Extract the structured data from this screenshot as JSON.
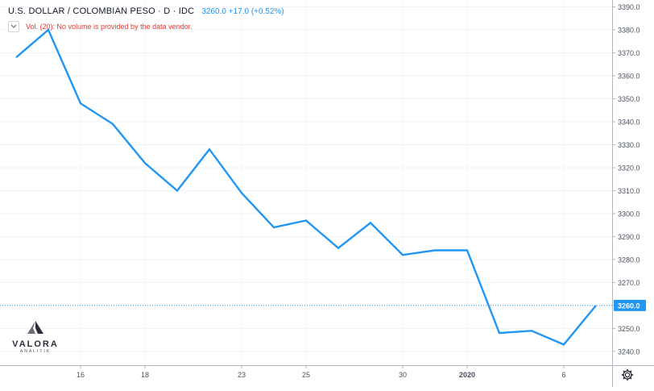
{
  "legend": {
    "title": "U.S. DOLLAR / COLOMBIAN PESO · D · IDC",
    "quote": "3260.0 +17.0 (+0.52%)"
  },
  "volume_note": "Vol. (20): No volume is provided by the data vendor.",
  "logo": {
    "name": "VALORA",
    "sub": "ANALITIK"
  },
  "colors": {
    "line": "#2196f3",
    "grid": "#f0f3fa",
    "axis_text": "#4c525e",
    "price_label_bg": "#2196f3",
    "volume_text": "#e53935"
  },
  "icons": {
    "settings": "gear-icon",
    "toggle": "chevron-down-icon",
    "logo": "valora-logo-icon"
  },
  "chart_data": {
    "type": "line",
    "x_ticks": [
      "16",
      "18",
      "23",
      "25",
      "30",
      "2020",
      "6"
    ],
    "x": [
      "12",
      "13",
      "16",
      "17",
      "18",
      "19",
      "20",
      "23",
      "24",
      "25",
      "26",
      "27",
      "30",
      "31",
      "2020",
      "2",
      "3",
      "6",
      "7"
    ],
    "series": [
      {
        "values": [
          3368,
          3380,
          3348,
          3339,
          3322,
          3310,
          3328,
          3309,
          3294,
          3297,
          3285,
          3296,
          3282,
          3284,
          3284,
          3248,
          3249,
          3243,
          3260
        ]
      }
    ],
    "y_ticks": [
      "3240.0",
      "3250.0",
      "3260.0",
      "3270.0",
      "3280.0",
      "3290.0",
      "3300.0",
      "3310.0",
      "3320.0",
      "3330.0",
      "3340.0",
      "3350.0",
      "3360.0",
      "3370.0",
      "3380.0",
      "3390.0"
    ],
    "ylim": [
      3234,
      3393
    ],
    "last_price_label": "3260.0",
    "last_value": 3260,
    "grid": true
  }
}
